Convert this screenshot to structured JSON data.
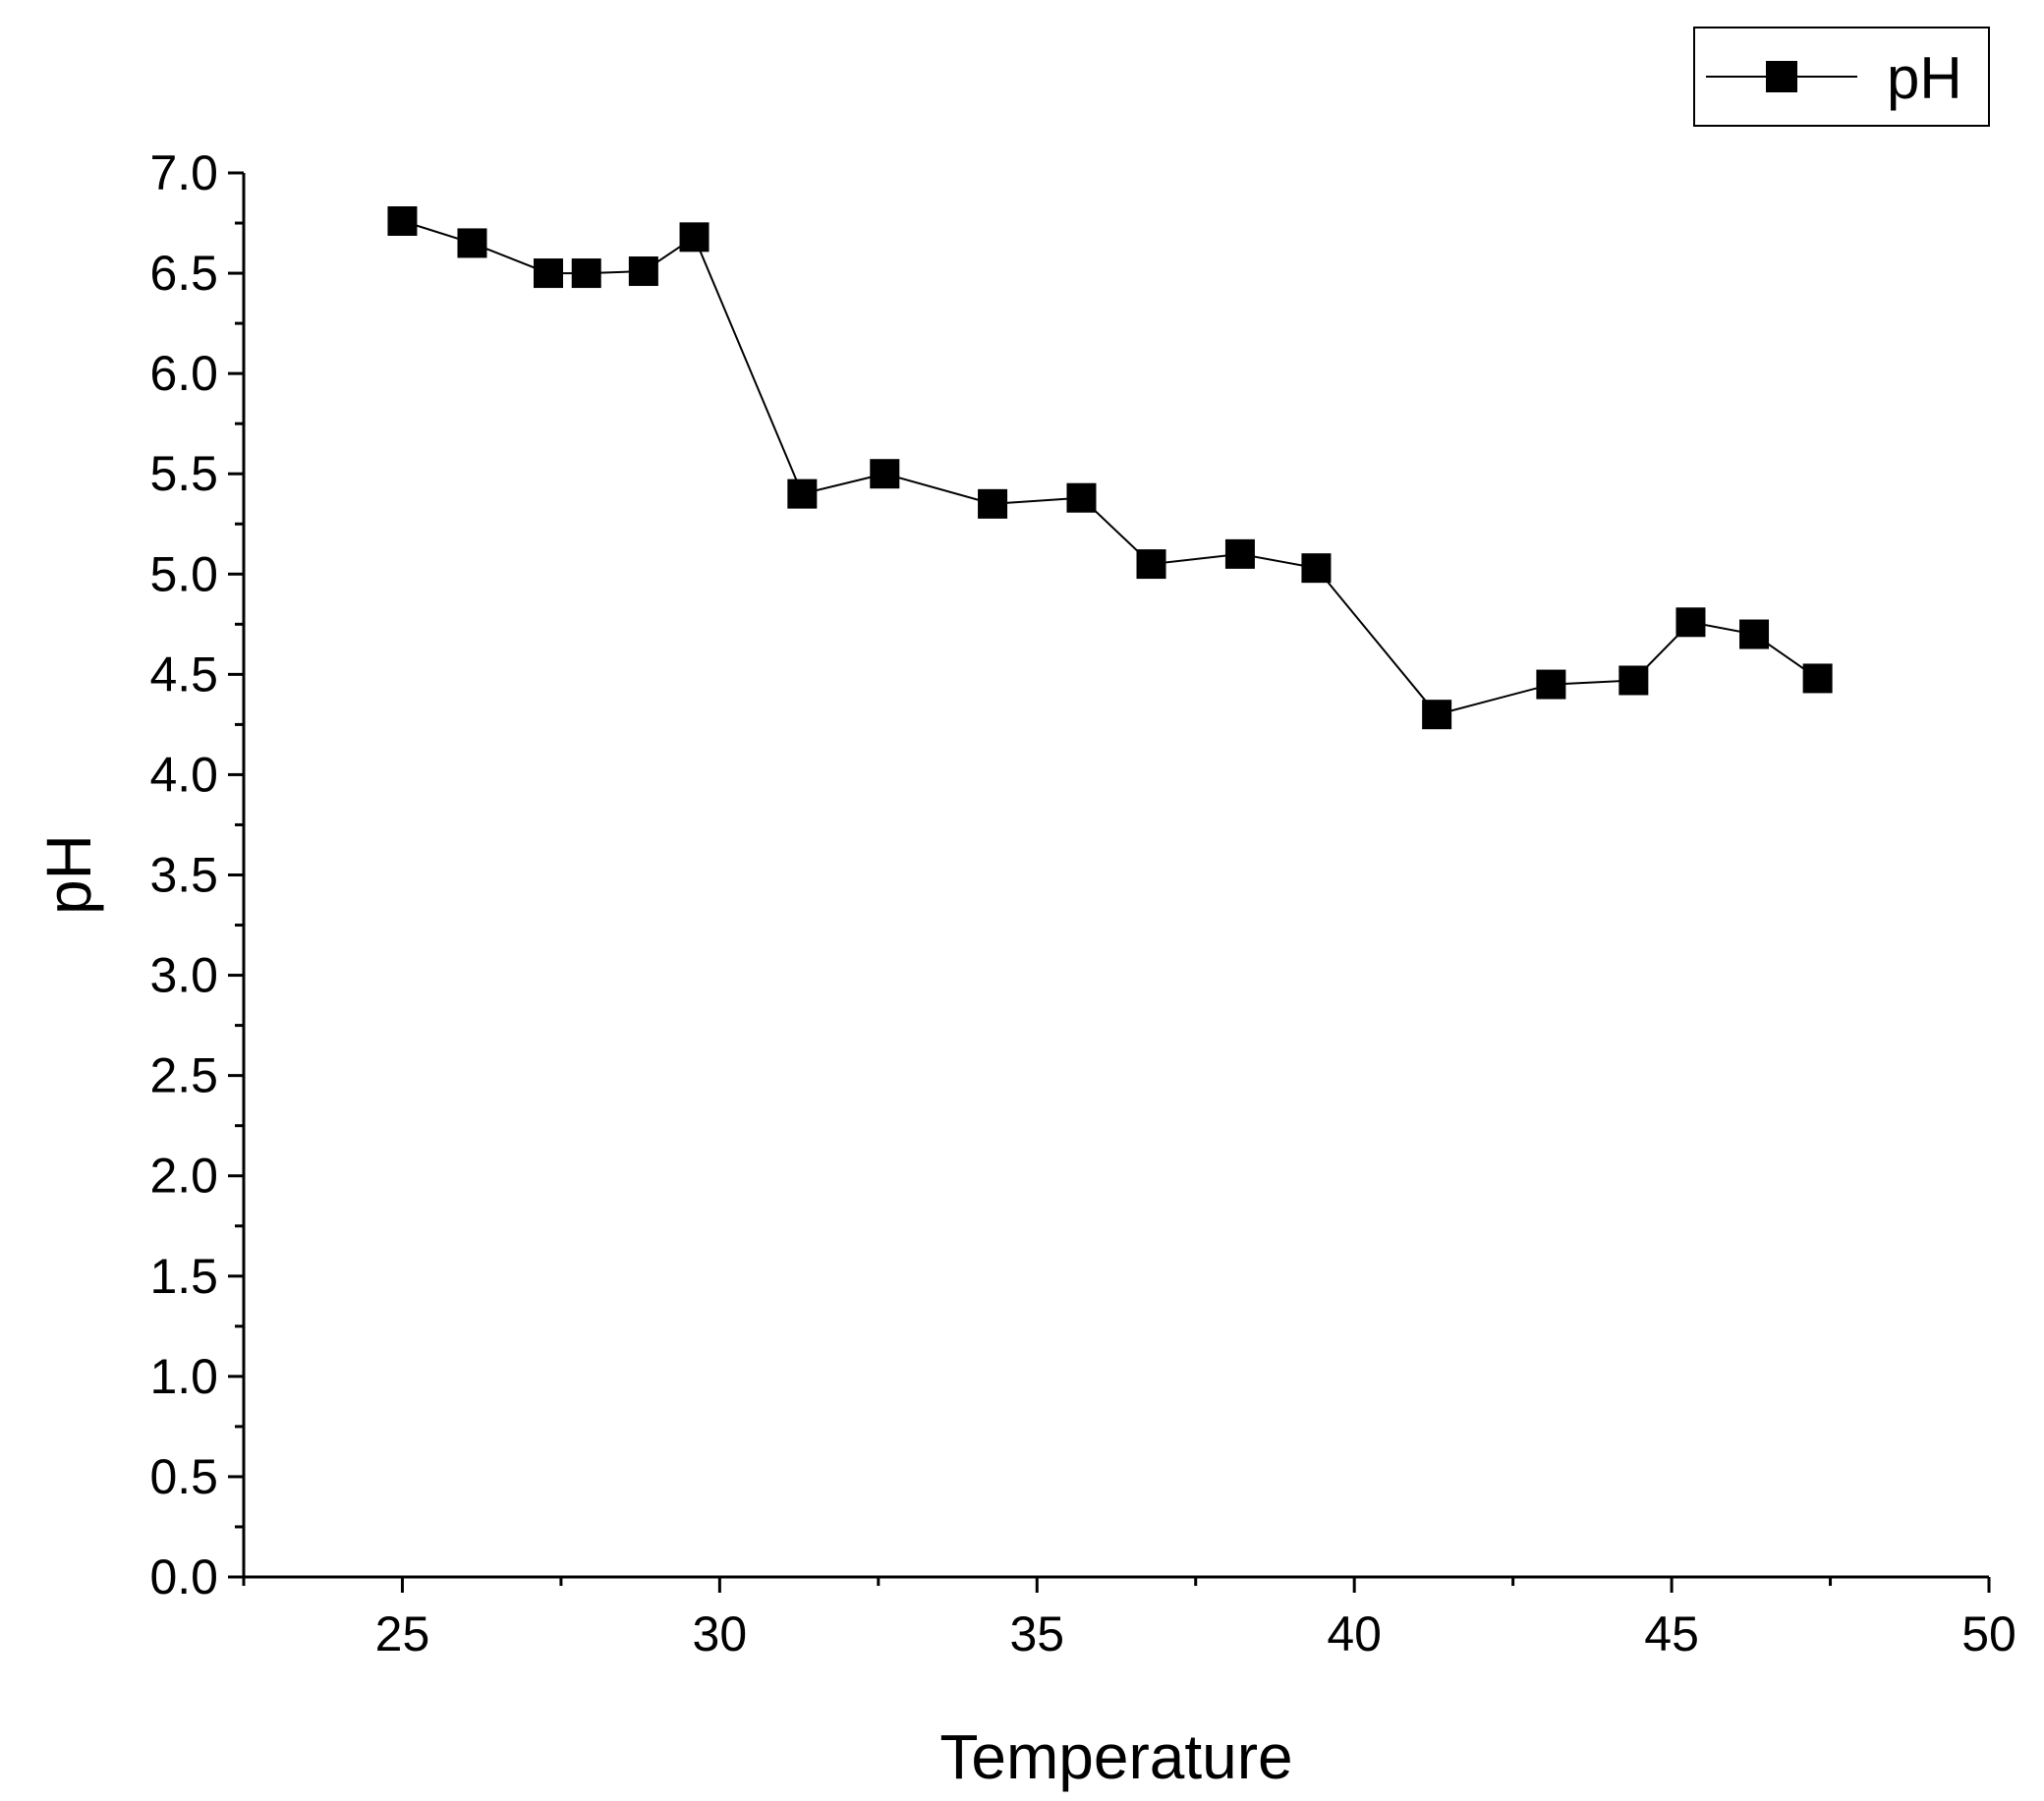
{
  "chart_data": {
    "type": "line",
    "title": "",
    "xlabel": "Temperature",
    "ylabel": "pH",
    "xlim": [
      22.5,
      50
    ],
    "ylim": [
      0,
      7
    ],
    "x_ticks": [
      "25",
      "30",
      "35",
      "40",
      "45",
      "50"
    ],
    "y_ticks": [
      "0.0",
      "0.5",
      "1.0",
      "1.5",
      "2.0",
      "2.5",
      "3.0",
      "3.5",
      "4.0",
      "4.5",
      "5.0",
      "5.5",
      "6.0",
      "6.5",
      "7.0"
    ],
    "grid": false,
    "legend_position": "top-right",
    "series": [
      {
        "name": "pH",
        "marker": "square",
        "color": "#000000",
        "x": [
          25.0,
          26.1,
          27.3,
          27.9,
          28.8,
          29.6,
          31.3,
          32.6,
          34.3,
          35.7,
          36.8,
          38.2,
          39.4,
          41.3,
          43.1,
          44.4,
          45.3,
          46.3,
          47.3
        ],
        "y": [
          6.76,
          6.65,
          6.5,
          6.5,
          6.51,
          6.68,
          5.4,
          5.5,
          5.35,
          5.38,
          5.05,
          5.1,
          5.03,
          4.3,
          4.45,
          4.47,
          4.76,
          4.7,
          4.48
        ]
      }
    ]
  }
}
